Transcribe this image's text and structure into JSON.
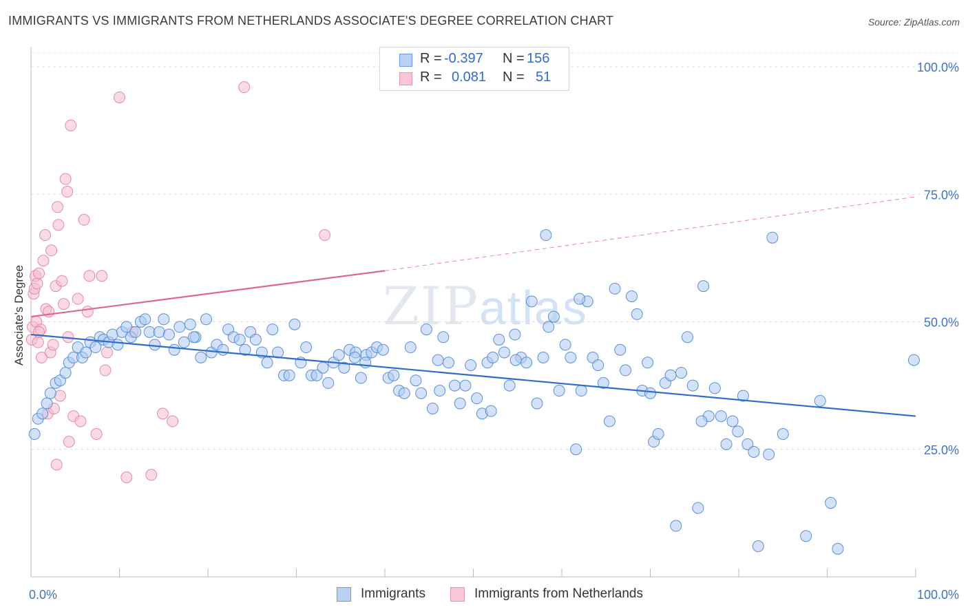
{
  "title": "IMMIGRANTS VS IMMIGRANTS FROM NETHERLANDS ASSOCIATE'S DEGREE CORRELATION CHART",
  "source": "Source: ZipAtlas.com",
  "watermark": {
    "zip": "ZIP",
    "atlas": "atlas"
  },
  "legend": {
    "r_label": "R =",
    "n_label": "N =",
    "rows": [
      {
        "r": "-0.397",
        "n": "156"
      },
      {
        "r": "0.081",
        "n": "51"
      }
    ]
  },
  "bottom_legend": [
    "Immigrants",
    "Immigrants from Netherlands"
  ],
  "colors": {
    "blue_fill": "#aecbf2",
    "blue_stroke": "#5b8fd6",
    "blue_line": "#2f6ccc",
    "pink_fill": "#f6bcd0",
    "pink_stroke": "#e48aa9",
    "pink_line": "#e0668f",
    "axis_text": "#3f73c4"
  },
  "chart_data": {
    "type": "scatter",
    "title": "IMMIGRANTS VS IMMIGRANTS FROM NETHERLANDS ASSOCIATE'S DEGREE CORRELATION CHART",
    "xlabel": "",
    "ylabel": "Associate's Degree",
    "xlim": [
      0,
      100
    ],
    "ylim": [
      0,
      100
    ],
    "x_tick_labels": [
      "0.0%",
      "100.0%"
    ],
    "y_ticks": [
      25,
      50,
      75,
      100
    ],
    "y_tick_labels": [
      "25.0%",
      "50.0%",
      "75.0%",
      "100.0%"
    ],
    "grid": true,
    "series": [
      {
        "name": "Immigrants",
        "r": -0.397,
        "n": 156,
        "trend": {
          "x": [
            0,
            100
          ],
          "y": [
            47.5,
            31.5
          ]
        },
        "points": [
          [
            0.4,
            28
          ],
          [
            0.8,
            31
          ],
          [
            1.3,
            32
          ],
          [
            1.8,
            34
          ],
          [
            2.2,
            36
          ],
          [
            2.8,
            38
          ],
          [
            3.3,
            38.5
          ],
          [
            3.9,
            40
          ],
          [
            4.3,
            42
          ],
          [
            4.8,
            43
          ],
          [
            5.3,
            45
          ],
          [
            5.8,
            43
          ],
          [
            6.2,
            44
          ],
          [
            6.7,
            46
          ],
          [
            7.3,
            45
          ],
          [
            7.8,
            47
          ],
          [
            8.2,
            46.5
          ],
          [
            8.8,
            46
          ],
          [
            9.2,
            47.5
          ],
          [
            9.8,
            45.5
          ],
          [
            10.3,
            48
          ],
          [
            10.8,
            49
          ],
          [
            11.3,
            47
          ],
          [
            11.8,
            48
          ],
          [
            12.4,
            50
          ],
          [
            12.9,
            50.5
          ],
          [
            13.4,
            48
          ],
          [
            14.0,
            45.5
          ],
          [
            14.5,
            48
          ],
          [
            15.0,
            50.5
          ],
          [
            15.6,
            47.5
          ],
          [
            16.2,
            44.5
          ],
          [
            16.8,
            49
          ],
          [
            17.3,
            46
          ],
          [
            18.0,
            49.5
          ],
          [
            18.6,
            47
          ],
          [
            19.2,
            43
          ],
          [
            19.8,
            50.5
          ],
          [
            20.4,
            44
          ],
          [
            21.0,
            45.5
          ],
          [
            21.7,
            44.5
          ],
          [
            22.3,
            48.5
          ],
          [
            22.9,
            47
          ],
          [
            23.6,
            46.5
          ],
          [
            24.2,
            44.5
          ],
          [
            24.8,
            48
          ],
          [
            25.4,
            46.5
          ],
          [
            26.1,
            44
          ],
          [
            26.7,
            42
          ],
          [
            27.3,
            48.5
          ],
          [
            27.9,
            44
          ],
          [
            28.6,
            39.5
          ],
          [
            29.2,
            39.5
          ],
          [
            29.8,
            49.5
          ],
          [
            30.5,
            42
          ],
          [
            31.1,
            45
          ],
          [
            31.7,
            39.5
          ],
          [
            32.3,
            39.5
          ],
          [
            33.0,
            41
          ],
          [
            33.6,
            38
          ],
          [
            34.2,
            42
          ],
          [
            34.8,
            43.5
          ],
          [
            35.4,
            41
          ],
          [
            36.0,
            44.5
          ],
          [
            36.7,
            44
          ],
          [
            37.3,
            39
          ],
          [
            37.9,
            43.5
          ],
          [
            38.5,
            44
          ],
          [
            39.1,
            45
          ],
          [
            39.8,
            44.5
          ],
          [
            40.4,
            39
          ],
          [
            41.0,
            39.5
          ],
          [
            41.6,
            36.5
          ],
          [
            42.2,
            36
          ],
          [
            42.9,
            45
          ],
          [
            43.5,
            38.5
          ],
          [
            44.1,
            36
          ],
          [
            44.7,
            48.5
          ],
          [
            45.4,
            33
          ],
          [
            46.0,
            42.5
          ],
          [
            46.6,
            47
          ],
          [
            47.2,
            42
          ],
          [
            47.9,
            37.5
          ],
          [
            48.5,
            34
          ],
          [
            49.1,
            37.5
          ],
          [
            49.7,
            41.5
          ],
          [
            50.4,
            35
          ],
          [
            51.0,
            32
          ],
          [
            51.6,
            42
          ],
          [
            52.2,
            43
          ],
          [
            52.9,
            46.5
          ],
          [
            53.5,
            44
          ],
          [
            54.1,
            37.5
          ],
          [
            54.7,
            47.5
          ],
          [
            55.4,
            43
          ],
          [
            56.0,
            42
          ],
          [
            56.6,
            54
          ],
          [
            57.2,
            34
          ],
          [
            57.9,
            43
          ],
          [
            58.5,
            49
          ],
          [
            59.1,
            51
          ],
          [
            59.7,
            36.5
          ],
          [
            60.4,
            45.5
          ],
          [
            61.0,
            43
          ],
          [
            61.6,
            25
          ],
          [
            62.2,
            36.5
          ],
          [
            62.9,
            54
          ],
          [
            63.5,
            43
          ],
          [
            64.1,
            41.5
          ],
          [
            64.7,
            38
          ],
          [
            65.4,
            30.5
          ],
          [
            66.0,
            56.5
          ],
          [
            66.6,
            44.5
          ],
          [
            67.2,
            40.5
          ],
          [
            67.9,
            55
          ],
          [
            68.5,
            51.5
          ],
          [
            69.1,
            36.5
          ],
          [
            69.7,
            42
          ],
          [
            70.4,
            26.5
          ],
          [
            70.9,
            28
          ],
          [
            71.7,
            38
          ],
          [
            72.3,
            39.5
          ],
          [
            72.9,
            10
          ],
          [
            73.5,
            40
          ],
          [
            74.2,
            47
          ],
          [
            74.8,
            37.5
          ],
          [
            75.4,
            13.5
          ],
          [
            76.0,
            57
          ],
          [
            76.6,
            31.5
          ],
          [
            77.3,
            37
          ],
          [
            78.0,
            31.5
          ],
          [
            78.6,
            26
          ],
          [
            79.3,
            30.5
          ],
          [
            79.9,
            28.5
          ],
          [
            80.5,
            35.5
          ],
          [
            81.0,
            26
          ],
          [
            81.7,
            24.5
          ],
          [
            82.2,
            6
          ],
          [
            83.4,
            24
          ],
          [
            83.8,
            66.5
          ],
          [
            85.0,
            28
          ],
          [
            87.6,
            8
          ],
          [
            89.2,
            34.5
          ],
          [
            90.4,
            14.5
          ],
          [
            91.2,
            5.5
          ],
          [
            99.8,
            42.5
          ],
          [
            75.8,
            30.5
          ],
          [
            36.6,
            43
          ],
          [
            46.2,
            36.5
          ],
          [
            54.8,
            42.5
          ],
          [
            18.4,
            47
          ],
          [
            62.0,
            54.5
          ],
          [
            52.0,
            32.5
          ],
          [
            37.8,
            42
          ],
          [
            58.2,
            67
          ],
          [
            70.0,
            36
          ]
        ]
      },
      {
        "name": "Immigrants from Netherlands",
        "r": 0.081,
        "n": 51,
        "trend_solid": {
          "x": [
            0,
            40
          ],
          "y": [
            51,
            60
          ]
        },
        "trend_dashed": {
          "x": [
            40,
            100
          ],
          "y": [
            60,
            74.5
          ]
        },
        "points": [
          [
            0.1,
            46.5
          ],
          [
            0.2,
            49
          ],
          [
            0.3,
            55.5
          ],
          [
            0.4,
            56.5
          ],
          [
            0.5,
            59
          ],
          [
            0.6,
            50
          ],
          [
            0.7,
            57.5
          ],
          [
            0.8,
            46
          ],
          [
            0.9,
            59.5
          ],
          [
            1.1,
            48.5
          ],
          [
            1.2,
            43
          ],
          [
            1.4,
            62
          ],
          [
            1.6,
            67
          ],
          [
            1.7,
            52.5
          ],
          [
            1.9,
            32
          ],
          [
            2.0,
            52
          ],
          [
            2.2,
            44
          ],
          [
            2.3,
            64
          ],
          [
            2.5,
            45.5
          ],
          [
            2.6,
            33
          ],
          [
            2.8,
            57
          ],
          [
            3.0,
            72.5
          ],
          [
            3.1,
            69
          ],
          [
            3.3,
            35.5
          ],
          [
            3.5,
            58
          ],
          [
            3.7,
            53.5
          ],
          [
            3.9,
            78
          ],
          [
            4.1,
            75.5
          ],
          [
            4.3,
            26.5
          ],
          [
            4.5,
            88.5
          ],
          [
            4.8,
            31.5
          ],
          [
            5.3,
            54.5
          ],
          [
            5.6,
            30.5
          ],
          [
            6.0,
            70
          ],
          [
            6.6,
            59
          ],
          [
            6.4,
            52
          ],
          [
            7.4,
            28
          ],
          [
            8.0,
            59
          ],
          [
            8.4,
            40.5
          ],
          [
            10.0,
            94
          ],
          [
            10.8,
            19.5
          ],
          [
            11.5,
            48
          ],
          [
            13.6,
            20
          ],
          [
            14.9,
            32
          ],
          [
            16.0,
            30.5
          ],
          [
            24.1,
            96
          ],
          [
            33.2,
            67
          ],
          [
            2.9,
            22
          ],
          [
            0.9,
            48
          ],
          [
            8.6,
            44
          ],
          [
            4.2,
            47
          ]
        ]
      }
    ]
  }
}
